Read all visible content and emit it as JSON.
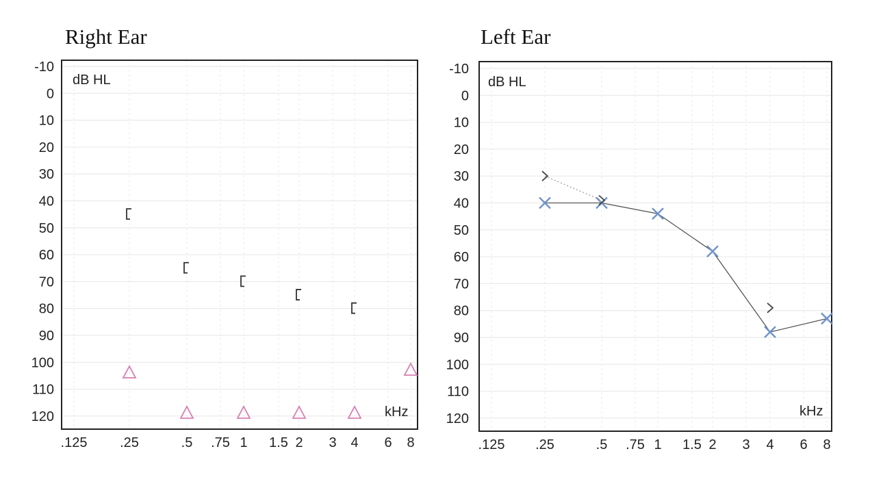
{
  "chart_data": [
    {
      "type": "scatter",
      "title": "Right Ear",
      "ylabel": "dB HL",
      "xlabel": "kHz",
      "ylim": [
        -10,
        120
      ],
      "y_ticks": [
        "-10",
        "0",
        "10",
        "20",
        "30",
        "40",
        "50",
        "60",
        "70",
        "80",
        "90",
        "100",
        "110",
        "120"
      ],
      "x_ticks": [
        ".125",
        ".25",
        ".5",
        ".75",
        "1",
        "1.5",
        "2",
        "3",
        "4",
        "6",
        "8"
      ],
      "grid": true,
      "series": [
        {
          "marker": "bracket",
          "color": "#333333",
          "connected": false,
          "x": [
            ".25",
            ".5",
            "1",
            "2",
            "4"
          ],
          "values": [
            45,
            65,
            70,
            75,
            80
          ]
        },
        {
          "marker": "triangle",
          "color": "#d77fb3",
          "connected": false,
          "x": [
            ".25",
            ".5",
            "1",
            "2",
            "4",
            "8"
          ],
          "values": [
            104,
            119,
            119,
            119,
            119,
            103
          ]
        }
      ]
    },
    {
      "type": "line",
      "title": "Left Ear",
      "ylabel": "dB HL",
      "xlabel": "kHz",
      "ylim": [
        -10,
        120
      ],
      "y_ticks": [
        "-10",
        "0",
        "10",
        "20",
        "30",
        "40",
        "50",
        "60",
        "70",
        "80",
        "90",
        "100",
        "110",
        "120"
      ],
      "x_ticks": [
        ".125",
        ".25",
        ".5",
        ".75",
        "1",
        "1.5",
        "2",
        "3",
        "4",
        "6",
        "8"
      ],
      "grid": true,
      "series": [
        {
          "marker": "x",
          "color": "#6f93cc",
          "connected": true,
          "x": [
            ".25",
            ".5",
            "1",
            "2",
            "4",
            "8"
          ],
          "values": [
            40,
            40,
            44,
            58,
            88,
            83
          ]
        },
        {
          "marker": "chevron-right",
          "color": "#444444",
          "connected": true,
          "x": [
            ".25",
            ".5"
          ],
          "values": [
            30,
            39
          ]
        },
        {
          "marker": "chevron-right",
          "color": "#444444",
          "connected": false,
          "x": [
            "4"
          ],
          "values": [
            79
          ]
        }
      ]
    }
  ]
}
